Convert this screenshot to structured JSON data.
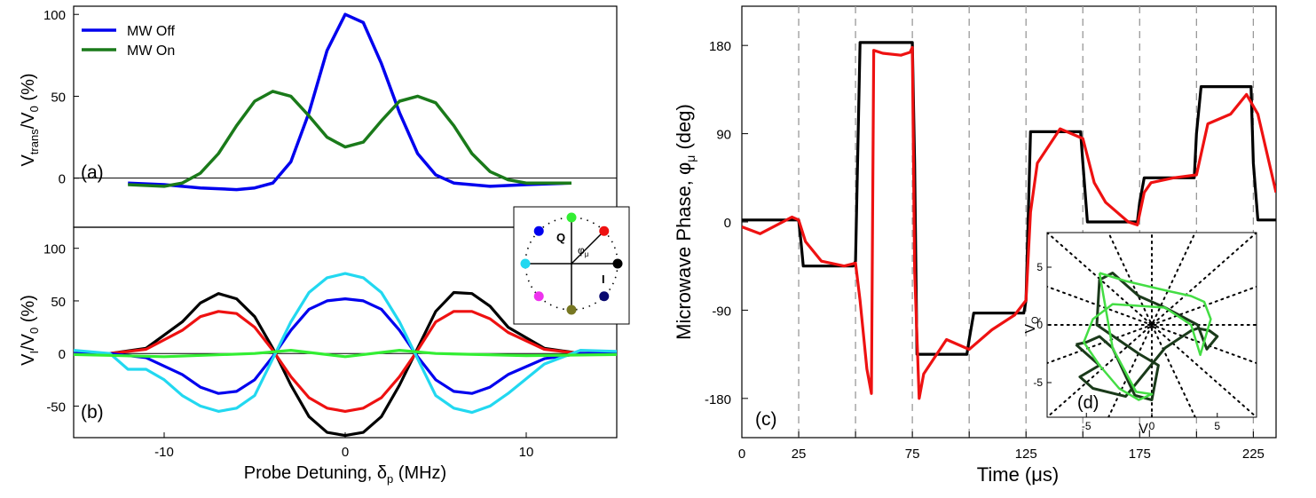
{
  "colors": {
    "blue": "#0000ee",
    "green": "#1a7a1a",
    "red": "#ee1111",
    "black": "#000000",
    "cyan": "#22d8f0",
    "lime": "#33ee33",
    "grid": "#999999",
    "magenta": "#ee33ee",
    "olive": "#777722",
    "navy": "#0a0a70",
    "inset_dark": "#1a3a1a",
    "inset_light": "#44dd44"
  },
  "chart_data": [
    {
      "id": "a",
      "type": "line",
      "panel_label": "(a)",
      "xlim": [
        -15,
        15
      ],
      "ylim": [
        -30,
        105
      ],
      "yticks": [
        0,
        50,
        100
      ],
      "ylabel": "Vtrans/V0 (%)",
      "ylabel_parts": {
        "a": "V",
        "sub": "trans",
        "b": "/V",
        "sub2": "0",
        "c": " (%)"
      },
      "legend": [
        {
          "name": "MW Off",
          "color_key": "blue"
        },
        {
          "name": "MW On",
          "color_key": "green"
        }
      ],
      "series": [
        {
          "name": "MW Off",
          "color_key": "blue",
          "x": [
            -12,
            -10,
            -8,
            -6,
            -5,
            -4,
            -3,
            -2,
            -1,
            0,
            1,
            2,
            3,
            4,
            5,
            6,
            8,
            10,
            12.5
          ],
          "y": [
            -3,
            -4,
            -6,
            -7,
            -6,
            -3,
            10,
            40,
            78,
            100,
            95,
            70,
            40,
            15,
            2,
            -3,
            -5,
            -4,
            -3
          ]
        },
        {
          "name": "MW On",
          "color_key": "green",
          "x": [
            -12,
            -10,
            -9,
            -8,
            -7,
            -6,
            -5,
            -4,
            -3,
            -2,
            -1,
            0,
            1,
            2,
            3,
            4,
            5,
            6,
            7,
            8,
            9,
            10,
            12.5
          ],
          "y": [
            -4,
            -5,
            -3,
            3,
            15,
            32,
            47,
            53,
            50,
            38,
            25,
            19,
            22,
            35,
            47,
            50,
            46,
            32,
            15,
            4,
            -1,
            -3,
            -3
          ]
        }
      ]
    },
    {
      "id": "b",
      "type": "line",
      "panel_label": "(b)",
      "xlim": [
        -15,
        15
      ],
      "ylim": [
        -80,
        120
      ],
      "yticks": [
        -50,
        0,
        50,
        100
      ],
      "xticks": [
        -10,
        0,
        10
      ],
      "xlabel": "Probe Detuning, δp (MHz)",
      "xlabel_parts": {
        "a": "Probe Detuning, δ",
        "sub": "p",
        "b": " (MHz)"
      },
      "ylabel": "VI/V0 (%)",
      "ylabel_parts": {
        "a": "V",
        "sub": "I",
        "b": "/V",
        "sub2": "0",
        "c": " (%)"
      },
      "series": [
        {
          "name": "black",
          "color_key": "black",
          "x": [
            -15,
            -13,
            -11,
            -9,
            -8,
            -7,
            -6,
            -5,
            -4,
            -3,
            -2,
            -1,
            0,
            1,
            2,
            3,
            4,
            5,
            6,
            7,
            8,
            9,
            11,
            13,
            15
          ],
          "y": [
            0,
            0,
            5,
            30,
            48,
            57,
            52,
            35,
            5,
            -30,
            -60,
            -75,
            -78,
            -75,
            -60,
            -30,
            5,
            40,
            58,
            57,
            45,
            25,
            5,
            0,
            0
          ]
        },
        {
          "name": "red",
          "color_key": "red",
          "x": [
            -15,
            -13,
            -11,
            -9,
            -8,
            -7,
            -6,
            -5,
            -4,
            -3,
            -2,
            -1,
            0,
            1,
            2,
            3,
            4,
            5,
            6,
            7,
            8,
            9,
            11,
            13,
            15
          ],
          "y": [
            0,
            0,
            4,
            22,
            35,
            40,
            38,
            25,
            3,
            -22,
            -42,
            -52,
            -55,
            -52,
            -42,
            -22,
            3,
            30,
            40,
            40,
            33,
            20,
            4,
            0,
            0
          ]
        },
        {
          "name": "blue",
          "color_key": "blue",
          "x": [
            -15,
            -13,
            -11,
            -9,
            -8,
            -7,
            -6,
            -5,
            -4,
            -3,
            -2,
            -1,
            0,
            1,
            2,
            3,
            4,
            5,
            6,
            7,
            8,
            9,
            11,
            13,
            15
          ],
          "y": [
            0,
            0,
            -4,
            -20,
            -32,
            -38,
            -36,
            -25,
            -3,
            22,
            42,
            50,
            52,
            50,
            42,
            22,
            -3,
            -25,
            -36,
            -38,
            -32,
            -20,
            -5,
            0,
            0
          ]
        },
        {
          "name": "cyan",
          "color_key": "cyan",
          "x": [
            -15,
            -13,
            -12,
            -11,
            -10,
            -9,
            -8,
            -7,
            -6,
            -5,
            -4,
            -3,
            -2,
            -1,
            0,
            1,
            2,
            3,
            4,
            5,
            6,
            7,
            8,
            9,
            11,
            13,
            15
          ],
          "y": [
            3,
            0,
            -15,
            -15,
            -25,
            -40,
            -50,
            -55,
            -52,
            -40,
            -5,
            30,
            58,
            72,
            76,
            72,
            58,
            30,
            -5,
            -40,
            -52,
            -56,
            -50,
            -38,
            -10,
            3,
            2
          ]
        },
        {
          "name": "green",
          "color_key": "lime",
          "x": [
            -15,
            -10,
            -5,
            -3,
            0,
            3,
            5,
            10,
            15
          ],
          "y": [
            -1,
            -3,
            0,
            3,
            -3,
            3,
            0,
            -2,
            -1
          ]
        }
      ],
      "phasor_inset": {
        "label_q": "Q",
        "label_i": "I",
        "label_phi": "φμ",
        "phi_parts": {
          "a": "φ",
          "sub": "μ"
        },
        "points": [
          {
            "angle_deg": 0,
            "color_key": "black"
          },
          {
            "angle_deg": 45,
            "color_key": "red"
          },
          {
            "angle_deg": 90,
            "color_key": "lime"
          },
          {
            "angle_deg": 135,
            "color_key": "blue"
          },
          {
            "angle_deg": 180,
            "color_key": "cyan"
          },
          {
            "angle_deg": 225,
            "color_key": "magenta"
          },
          {
            "angle_deg": 270,
            "color_key": "olive"
          },
          {
            "angle_deg": 315,
            "color_key": "navy"
          }
        ]
      }
    },
    {
      "id": "c",
      "type": "line",
      "panel_label": "(c)",
      "xlim": [
        0,
        235
      ],
      "ylim": [
        -220,
        220
      ],
      "xticks": [
        0,
        25,
        50,
        75,
        100,
        125,
        150,
        175,
        200,
        225
      ],
      "xtick_labels": [
        "0",
        "25",
        "",
        "75",
        "",
        "125",
        "",
        "175",
        "",
        "225"
      ],
      "yticks": [
        -180,
        -90,
        0,
        90,
        180
      ],
      "vlines": [
        25,
        50,
        75,
        100,
        125,
        150,
        175,
        200,
        225
      ],
      "xlabel": "Time (μs)",
      "ylabel": "Microwave Phase, φμ (deg)",
      "ylabel_parts": {
        "a": "Microwave Phase, φ",
        "sub": "μ",
        "b": " (deg)"
      },
      "series": [
        {
          "name": "black",
          "color_key": "black",
          "x": [
            0,
            25,
            26,
            27,
            49,
            50,
            52,
            75,
            76,
            77,
            99,
            100,
            102,
            124,
            125,
            127,
            149,
            150,
            152,
            174,
            175,
            177,
            199,
            200,
            202,
            224,
            225,
            227,
            235
          ],
          "y": [
            2,
            2,
            -20,
            -45,
            -45,
            -40,
            183,
            183,
            60,
            -135,
            -135,
            -120,
            -93,
            -93,
            -80,
            92,
            92,
            60,
            0,
            0,
            20,
            45,
            45,
            90,
            138,
            138,
            60,
            2,
            2
          ]
        },
        {
          "name": "red",
          "color_key": "red",
          "x": [
            0,
            8,
            18,
            22,
            25,
            28,
            35,
            45,
            50,
            52,
            55,
            57,
            58,
            62,
            70,
            74,
            75,
            76,
            78,
            80,
            90,
            100,
            110,
            120,
            125,
            127,
            130,
            140,
            150,
            155,
            160,
            170,
            174,
            177,
            180,
            190,
            200,
            205,
            215,
            222,
            227,
            235
          ],
          "y": [
            -5,
            -12,
            0,
            5,
            2,
            -20,
            -40,
            -45,
            -42,
            -80,
            -150,
            -175,
            175,
            172,
            170,
            173,
            178,
            -50,
            -180,
            -155,
            -120,
            -130,
            -110,
            -95,
            -80,
            10,
            60,
            95,
            85,
            40,
            20,
            0,
            -3,
            30,
            40,
            45,
            48,
            100,
            110,
            130,
            110,
            30
          ]
        }
      ],
      "inset": {
        "panel_label": "(d)",
        "xlabel": "VI",
        "xlabel_parts": {
          "a": "V",
          "sub": "I"
        },
        "ylabel": "VQ",
        "ylabel_parts": {
          "a": "V",
          "sub": "Q"
        },
        "xlim": [
          -8,
          8
        ],
        "ylim": [
          -8,
          8
        ],
        "xticks": [
          -5,
          0,
          5
        ],
        "yticks": [
          -5,
          0,
          5
        ],
        "dotted_line_angles_deg": [
          0,
          22.5,
          45,
          67.5,
          90,
          112.5,
          135,
          157.5
        ],
        "dark_trace": {
          "x": [
            -5.8,
            -4,
            -5.5,
            -4.5,
            -2,
            1,
            3,
            3.5,
            4.4,
            5,
            4.2,
            3.5,
            1,
            -1,
            -2,
            -3,
            -4,
            -4.2,
            -1,
            0.5,
            0,
            -1.3,
            -3,
            -4,
            -5,
            -5.8
          ],
          "y": [
            -1.7,
            -3.5,
            -4.5,
            -5.5,
            -6.2,
            -2,
            -0.5,
            -0.3,
            -0.5,
            -1,
            -2.1,
            0,
            1.5,
            2.5,
            3.5,
            4.5,
            3.9,
            0,
            -2.5,
            -3.5,
            -6.5,
            -6.1,
            -2,
            -1,
            -1.5,
            -1.7
          ]
        },
        "light_trace": {
          "x": [
            -4,
            -2,
            1,
            3,
            4,
            4.5,
            3.7,
            3,
            1,
            -3,
            -4.5,
            -5.2,
            -4,
            -2.5,
            -1,
            0,
            -1.2,
            -3,
            -4
          ],
          "y": [
            4.5,
            3.8,
            3,
            2.5,
            2,
            0.5,
            -2.6,
            0,
            1.5,
            1.8,
            0.5,
            -1.5,
            -3.5,
            -5.5,
            -6.5,
            -6,
            -5.8,
            -2,
            4.5
          ]
        }
      }
    }
  ]
}
